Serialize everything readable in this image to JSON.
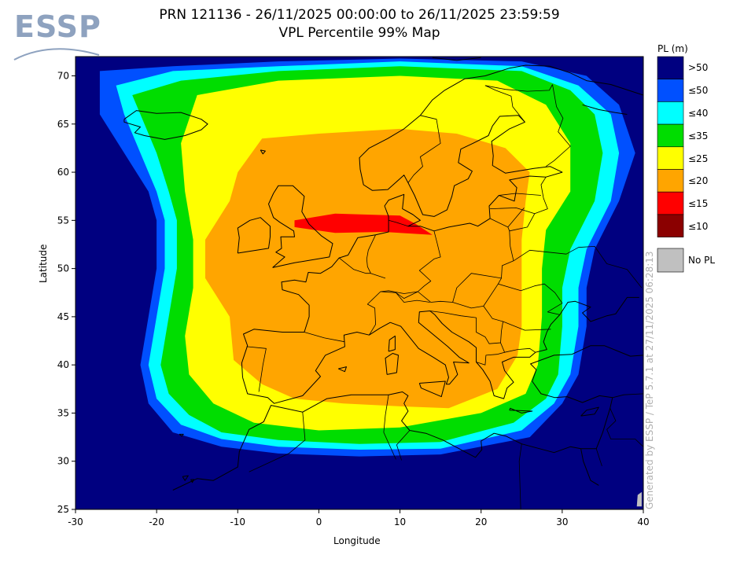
{
  "logo": {
    "text": "ESSP"
  },
  "header": {
    "title_line1": "PRN 121136 - 26/11/2025 00:00:00 to 26/11/2025 23:59:59",
    "title_line2": "VPL Percentile 99% Map"
  },
  "chart_data": {
    "type": "heatmap",
    "xlabel": "Longitude",
    "ylabel": "Latitude",
    "xlim": [
      -30,
      40
    ],
    "ylim": [
      25,
      72
    ],
    "x_ticks": [
      "-30",
      "-20",
      "-10",
      "0",
      "10",
      "20",
      "30",
      "40"
    ],
    "x_tick_values": [
      -30,
      -20,
      -10,
      0,
      10,
      20,
      30,
      40
    ],
    "y_ticks": [
      "25",
      "30",
      "35",
      "40",
      "45",
      "50",
      "55",
      "60",
      "65",
      "70"
    ],
    "y_tick_values": [
      25,
      30,
      35,
      40,
      45,
      50,
      55,
      60,
      65,
      70
    ],
    "legend": {
      "title": "PL (m)",
      "placement": "right",
      "entries": [
        {
          "label": ">50",
          "color": "#000080"
        },
        {
          "label": "≤50",
          "color": "#0050ff"
        },
        {
          "label": "≤40",
          "color": "#00ffff"
        },
        {
          "label": "≤35",
          "color": "#00dd00"
        },
        {
          "label": "≤25",
          "color": "#ffff00"
        },
        {
          "label": "≤20",
          "color": "#ffa500"
        },
        {
          "label": "≤15",
          "color": "#ff0000"
        },
        {
          "label": "≤10",
          "color": "#8b0000"
        }
      ],
      "no_pl": {
        "label": "No PL",
        "color": "#c0c0c0"
      }
    },
    "contours": [
      {
        "level": "≤50",
        "color": "#0050ff",
        "points": [
          [
            -27,
            70.5
          ],
          [
            -18,
            71
          ],
          [
            -5,
            71.5
          ],
          [
            10,
            71.8
          ],
          [
            25,
            71.5
          ],
          [
            33,
            70
          ],
          [
            37,
            67
          ],
          [
            39,
            62
          ],
          [
            37,
            57
          ],
          [
            34,
            52
          ],
          [
            33,
            48
          ],
          [
            33,
            44
          ],
          [
            32,
            39
          ],
          [
            30,
            36
          ],
          [
            26,
            32.5
          ],
          [
            15,
            30.7
          ],
          [
            5,
            30.5
          ],
          [
            -5,
            30.8
          ],
          [
            -12,
            31.5
          ],
          [
            -18,
            33
          ],
          [
            -21,
            36
          ],
          [
            -22,
            40
          ],
          [
            -21,
            45
          ],
          [
            -20,
            50
          ],
          [
            -20,
            55
          ],
          [
            -21,
            58
          ],
          [
            -24,
            62
          ],
          [
            -27,
            66
          ]
        ]
      },
      {
        "level": "≤40",
        "color": "#00ffff",
        "points": [
          [
            -25,
            69
          ],
          [
            -18,
            70.5
          ],
          [
            -5,
            71
          ],
          [
            10,
            71.5
          ],
          [
            25,
            71
          ],
          [
            32,
            69
          ],
          [
            36,
            66
          ],
          [
            37,
            62
          ],
          [
            36,
            57
          ],
          [
            33,
            52
          ],
          [
            32,
            48
          ],
          [
            32,
            44
          ],
          [
            31,
            39
          ],
          [
            29,
            36
          ],
          [
            25,
            33.2
          ],
          [
            15,
            31.3
          ],
          [
            5,
            31.2
          ],
          [
            -5,
            31.5
          ],
          [
            -12,
            32.3
          ],
          [
            -17,
            33.8
          ],
          [
            -20,
            36.5
          ],
          [
            -21,
            40
          ],
          [
            -20,
            45
          ],
          [
            -19,
            50
          ],
          [
            -19,
            55
          ],
          [
            -20,
            58
          ],
          [
            -22,
            62
          ],
          [
            -24,
            66
          ]
        ]
      },
      {
        "level": "≤35",
        "color": "#00dd00",
        "points": [
          [
            -23,
            68
          ],
          [
            -17,
            69.5
          ],
          [
            -5,
            70.5
          ],
          [
            10,
            71
          ],
          [
            25,
            70.5
          ],
          [
            31,
            68.5
          ],
          [
            34,
            66
          ],
          [
            35,
            62
          ],
          [
            34,
            57
          ],
          [
            31,
            52
          ],
          [
            30,
            48
          ],
          [
            30,
            44
          ],
          [
            29.5,
            39
          ],
          [
            28,
            36.5
          ],
          [
            24,
            34
          ],
          [
            15,
            32
          ],
          [
            5,
            31.8
          ],
          [
            -5,
            32.2
          ],
          [
            -12,
            33
          ],
          [
            -16,
            34.8
          ],
          [
            -18.5,
            37
          ],
          [
            -19.5,
            40
          ],
          [
            -18.5,
            45
          ],
          [
            -17.5,
            50
          ],
          [
            -17.5,
            55
          ],
          [
            -18.5,
            58
          ],
          [
            -20,
            62
          ],
          [
            -22,
            66
          ]
        ]
      },
      {
        "level": "≤25",
        "color": "#ffff00",
        "points": [
          [
            -15,
            68
          ],
          [
            -5,
            69.5
          ],
          [
            10,
            70
          ],
          [
            22,
            69.5
          ],
          [
            28,
            67
          ],
          [
            31,
            63
          ],
          [
            31,
            58
          ],
          [
            28,
            54
          ],
          [
            27.5,
            50
          ],
          [
            27.5,
            45
          ],
          [
            27,
            40
          ],
          [
            25.5,
            37
          ],
          [
            20,
            35
          ],
          [
            10,
            33.5
          ],
          [
            0,
            33.2
          ],
          [
            -8,
            34
          ],
          [
            -13,
            36
          ],
          [
            -16,
            39
          ],
          [
            -16.5,
            43
          ],
          [
            -15.5,
            48
          ],
          [
            -15.5,
            53
          ],
          [
            -16.5,
            58
          ],
          [
            -17,
            63
          ]
        ]
      },
      {
        "level": "≤20",
        "color": "#ffa500",
        "points": [
          [
            -7,
            63.5
          ],
          [
            0,
            64
          ],
          [
            10,
            64.5
          ],
          [
            17,
            64
          ],
          [
            23,
            62.5
          ],
          [
            26,
            60
          ],
          [
            25.5,
            57
          ],
          [
            25,
            53
          ],
          [
            25,
            48
          ],
          [
            25,
            44
          ],
          [
            24.5,
            41
          ],
          [
            22,
            37.5
          ],
          [
            16,
            35.5
          ],
          [
            10,
            35.7
          ],
          [
            3,
            36
          ],
          [
            -3,
            36.5
          ],
          [
            -7,
            38
          ],
          [
            -10.5,
            40.5
          ],
          [
            -11,
            45
          ],
          [
            -14,
            49
          ],
          [
            -14,
            53
          ],
          [
            -11,
            57
          ],
          [
            -10,
            60
          ]
        ]
      },
      {
        "level": "≤15",
        "color": "#ff0000",
        "points": [
          [
            -3,
            55
          ],
          [
            2,
            55.7
          ],
          [
            10,
            55.5
          ],
          [
            12,
            54.6
          ],
          [
            14,
            53.5
          ],
          [
            8,
            53.8
          ],
          [
            2,
            53.7
          ],
          [
            -3,
            54.3
          ]
        ]
      }
    ],
    "no_pl_cells": [
      [
        39.2,
        25.3
      ],
      [
        39.8,
        25.3
      ],
      [
        39.8,
        26.8
      ],
      [
        39.3,
        26.5
      ]
    ]
  },
  "credit": {
    "text": "Generated by ESSP / TeP 5.7.1 at 27/11/2025 06:28:13"
  }
}
